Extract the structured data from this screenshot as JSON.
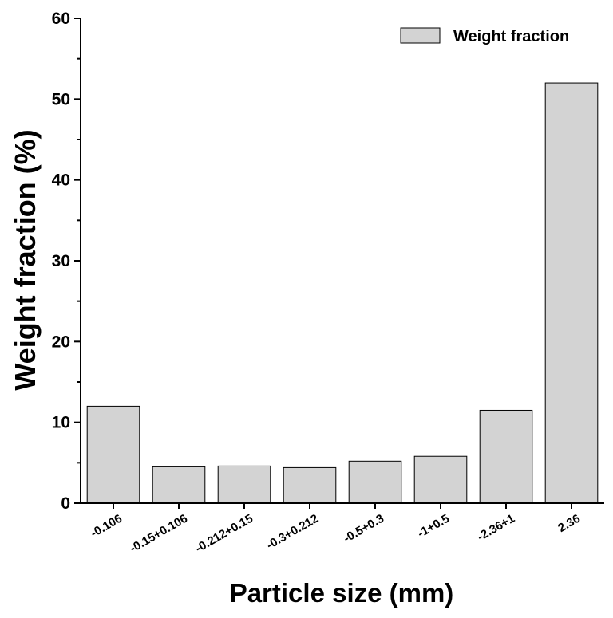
{
  "chart_data": {
    "type": "bar",
    "categories": [
      "-0.106",
      "-0.15+0.106",
      "-0.212+0.15",
      "-0.3+0.212",
      "-0.5+0.3",
      "-1+0.5",
      "-2.36+1",
      "2.36"
    ],
    "series": [
      {
        "name": "Weight fraction",
        "values": [
          12.0,
          4.5,
          4.6,
          4.4,
          5.2,
          5.8,
          11.5,
          52.0
        ]
      }
    ],
    "xlabel": "Particle size (mm)",
    "ylabel": "Weight fraction (%)",
    "ylim": [
      0,
      60
    ],
    "yticks": [
      0,
      10,
      20,
      30,
      40,
      50,
      60
    ],
    "grid": false,
    "legend_position": "top-right",
    "colors": {
      "bar_fill": "#d3d3d3",
      "bar_stroke": "#000000",
      "axis": "#000000"
    }
  }
}
